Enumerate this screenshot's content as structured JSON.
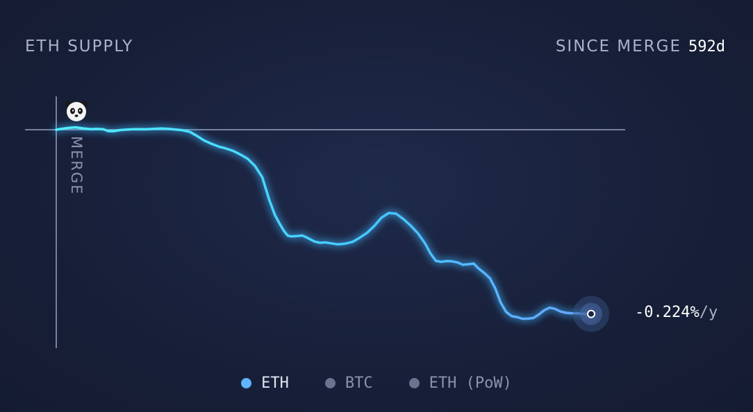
{
  "header": {
    "title": "ETH SUPPLY",
    "since_label": "SINCE MERGE",
    "since_value": "592d"
  },
  "chart_data": {
    "type": "line",
    "title": "ETH SUPPLY",
    "marker_label": "MERGE",
    "current_rate": "-0.224%",
    "current_rate_unit": "/y",
    "grid": false,
    "legend_position": "bottom-center",
    "xlim": [
      0,
      592
    ],
    "series": [
      {
        "name": "ETH",
        "color": "#5fb3ff",
        "x": [
          0,
          8,
          14,
          22,
          30,
          38,
          45,
          52,
          58,
          64,
          70,
          76,
          84,
          92,
          100,
          108,
          116,
          124,
          132,
          140,
          148,
          156,
          164,
          172,
          180,
          188,
          196,
          204,
          212,
          220,
          228,
          236,
          242,
          248,
          252,
          256,
          260,
          264,
          268,
          272,
          276,
          280,
          286,
          292,
          298,
          304,
          312,
          320,
          328,
          336,
          344,
          352,
          360,
          368,
          376,
          384,
          392,
          400,
          408,
          414,
          420,
          426,
          432,
          438,
          444,
          450,
          456,
          462,
          468,
          474,
          480,
          486,
          492,
          498,
          504,
          510,
          516,
          522,
          528,
          534,
          540,
          546,
          552,
          558,
          564,
          570,
          576,
          582,
          588,
          592
        ],
        "y": [
          0.0,
          0.8,
          1.3,
          1.6,
          0.9,
          0.4,
          0.5,
          0.3,
          -1.0,
          -1.0,
          -0.3,
          0.0,
          0.3,
          0.4,
          0.3,
          0.6,
          0.8,
          0.6,
          0.1,
          -0.4,
          -1.5,
          -4.4,
          -7.5,
          -9.7,
          -11.6,
          -12.9,
          -14.6,
          -17.1,
          -20.0,
          -24.9,
          -32.7,
          -48.7,
          -58.6,
          -65.4,
          -69.5,
          -72.6,
          -73.3,
          -73.1,
          -72.9,
          -72.6,
          -73.6,
          -74.9,
          -76.8,
          -77.6,
          -77.4,
          -78.0,
          -78.7,
          -78.2,
          -77.0,
          -74.1,
          -70.8,
          -66.1,
          -60.4,
          -57.2,
          -57.6,
          -61.3,
          -65.7,
          -70.9,
          -77.9,
          -84.8,
          -90.0,
          -90.7,
          -90.2,
          -90.4,
          -91.1,
          -92.7,
          -92.4,
          -91.9,
          -95.6,
          -98.5,
          -102.0,
          -109.1,
          -118.8,
          -125.1,
          -128.0,
          -128.6,
          -129.8,
          -129.7,
          -129.3,
          -126.9,
          -124.0,
          -122.2,
          -123.0,
          -124.8,
          -125.7,
          -126.0,
          -126.1,
          -126.3,
          -126.5,
          -126.5
        ]
      },
      {
        "name": "BTC",
        "color": "#6b7390"
      },
      {
        "name": "ETH (PoW)",
        "color": "#6b7390"
      }
    ]
  }
}
